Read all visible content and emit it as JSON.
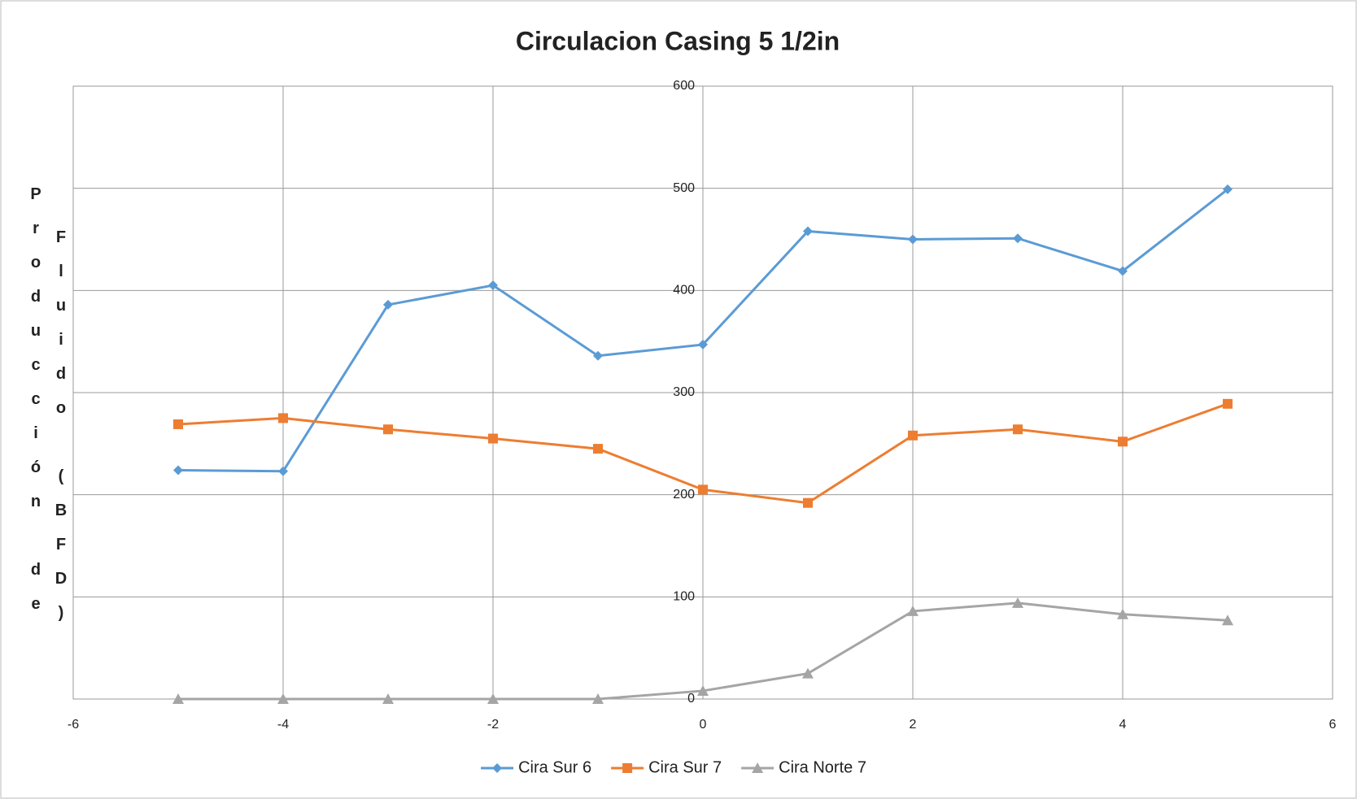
{
  "chart_data": {
    "type": "line",
    "title": "Circulacion Casing 5 1/2in",
    "ylabel": [
      "Producción de",
      "Fluido (BFD)"
    ],
    "x": [
      -5,
      -4,
      -3,
      -2,
      -1,
      0,
      1,
      2,
      3,
      4,
      5
    ],
    "series": [
      {
        "name": "Cira Sur 6",
        "color": "#5b9bd5",
        "marker": "diamond",
        "values": [
          224,
          223,
          386,
          405,
          336,
          347,
          458,
          450,
          451,
          419,
          499
        ]
      },
      {
        "name": "Cira Sur 7",
        "color": "#ed7d31",
        "marker": "square",
        "values": [
          269,
          275,
          264,
          255,
          245,
          205,
          192,
          258,
          264,
          252,
          289
        ]
      },
      {
        "name": "Cira Norte 7",
        "color": "#a5a5a5",
        "marker": "triangle",
        "values": [
          0,
          0,
          0,
          0,
          0,
          8,
          25,
          86,
          94,
          83,
          77
        ]
      }
    ],
    "xlim": [
      -6,
      6
    ],
    "xticks": [
      -6,
      -4,
      -2,
      0,
      2,
      4,
      6
    ],
    "ylim": [
      0,
      600
    ],
    "yticks": [
      0,
      100,
      200,
      300,
      400,
      500,
      600
    ],
    "grid": true,
    "legend": "bottom"
  }
}
